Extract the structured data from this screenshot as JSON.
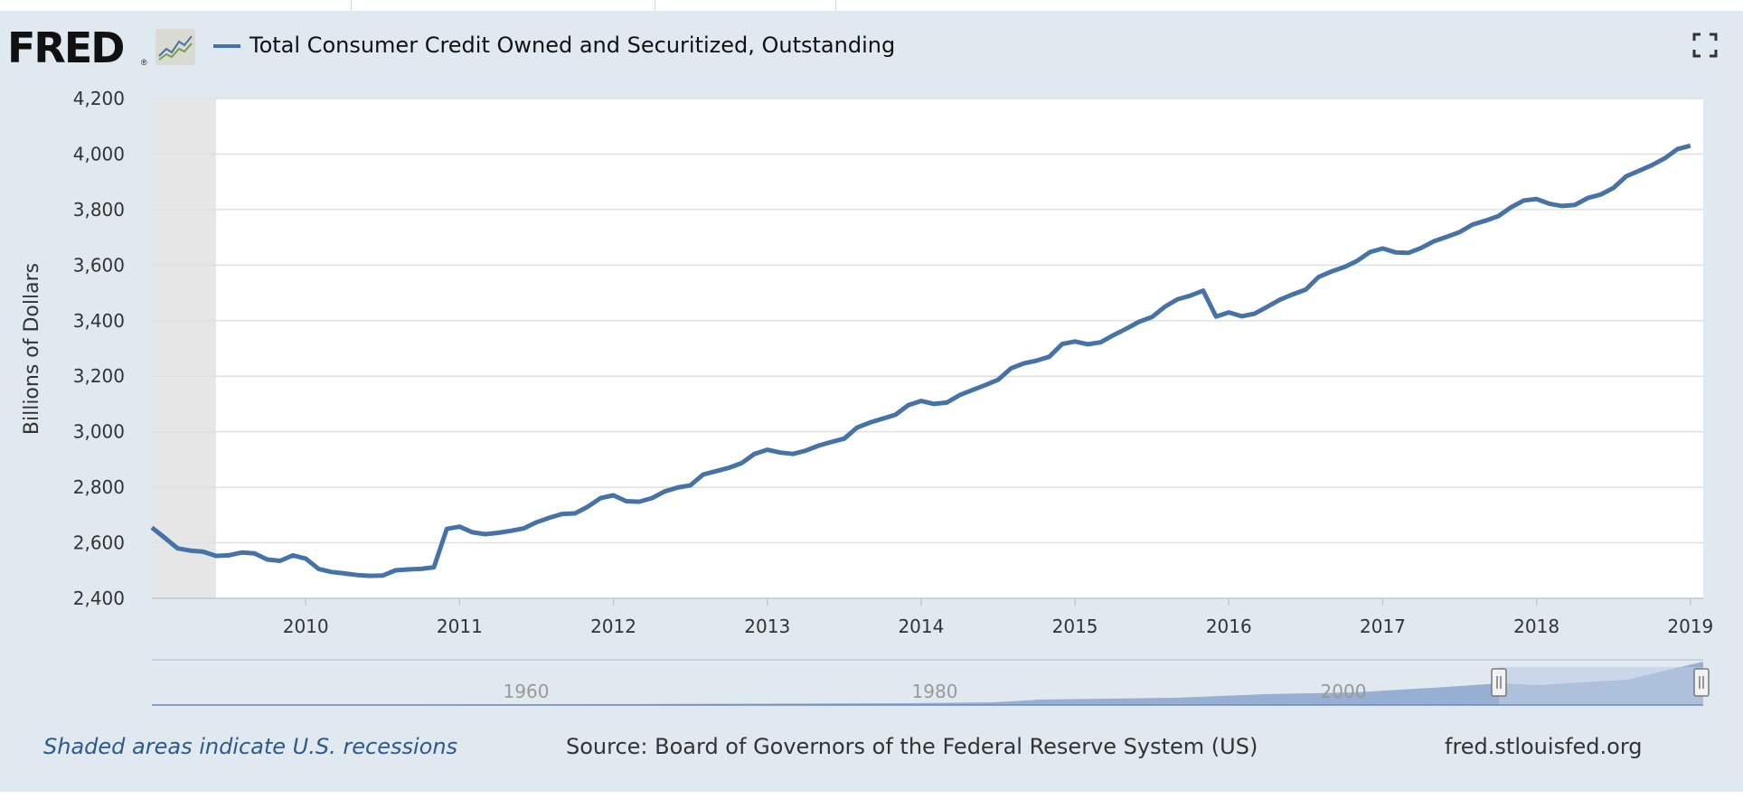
{
  "logo": {
    "text": "FRED",
    "registered": "®"
  },
  "legend": {
    "series_name": "Total Consumer Credit Owned and Securitized, Outstanding",
    "color": "#4572a7"
  },
  "toolbar": {
    "fullscreen_icon": "fullscreen-icon"
  },
  "footer": {
    "recession_note": "Shaded areas indicate U.S. recessions",
    "source": "Source: Board of Governors of the Federal Reserve System (US)",
    "url": "fred.stlouisfed.org"
  },
  "colors": {
    "series": "#4572a7",
    "recession": "#e6e6e6",
    "background": "#e1e9f0",
    "navigator_fill": "#8fa9cf",
    "navigator_selected": "#bccce3"
  },
  "chart_data": {
    "type": "line",
    "title": "",
    "xlabel": "",
    "ylabel": "Billions of Dollars",
    "xlim": [
      "2009-01",
      "2019-02"
    ],
    "ylim": [
      2400,
      4200
    ],
    "yticks": [
      2400,
      2600,
      2800,
      3000,
      3200,
      3400,
      3600,
      3800,
      4000,
      4200
    ],
    "ytick_labels": [
      "2,400",
      "2,600",
      "2,800",
      "3,000",
      "3,200",
      "3,400",
      "3,600",
      "3,800",
      "4,000",
      "4,200"
    ],
    "xticks": [
      "2010",
      "2011",
      "2012",
      "2013",
      "2014",
      "2015",
      "2016",
      "2017",
      "2018",
      "2019"
    ],
    "grid": true,
    "legend": "top-left",
    "recessions": [
      {
        "start": "2009-01",
        "end": "2009-06"
      }
    ],
    "series": [
      {
        "name": "Total Consumer Credit Owned and Securitized, Outstanding",
        "points": [
          [
            "2009-01",
            2655
          ],
          [
            "2009-02",
            2618
          ],
          [
            "2009-03",
            2580
          ],
          [
            "2009-04",
            2572
          ],
          [
            "2009-05",
            2568
          ],
          [
            "2009-06",
            2553
          ],
          [
            "2009-07",
            2555
          ],
          [
            "2009-08",
            2565
          ],
          [
            "2009-09",
            2562
          ],
          [
            "2009-10",
            2540
          ],
          [
            "2009-11",
            2535
          ],
          [
            "2009-12",
            2555
          ],
          [
            "2010-01",
            2543
          ],
          [
            "2010-02",
            2506
          ],
          [
            "2010-03",
            2495
          ],
          [
            "2010-04",
            2490
          ],
          [
            "2010-05",
            2484
          ],
          [
            "2010-06",
            2481
          ],
          [
            "2010-07",
            2482
          ],
          [
            "2010-08",
            2501
          ],
          [
            "2010-09",
            2504
          ],
          [
            "2010-10",
            2506
          ],
          [
            "2010-11",
            2512
          ],
          [
            "2010-12",
            2650
          ],
          [
            "2011-01",
            2658
          ],
          [
            "2011-02",
            2638
          ],
          [
            "2011-03",
            2631
          ],
          [
            "2011-04",
            2636
          ],
          [
            "2011-05",
            2643
          ],
          [
            "2011-06",
            2652
          ],
          [
            "2011-07",
            2674
          ],
          [
            "2011-08",
            2690
          ],
          [
            "2011-09",
            2704
          ],
          [
            "2011-10",
            2706
          ],
          [
            "2011-11",
            2730
          ],
          [
            "2011-12",
            2761
          ],
          [
            "2012-01",
            2771
          ],
          [
            "2012-02",
            2750
          ],
          [
            "2012-03",
            2748
          ],
          [
            "2012-04",
            2761
          ],
          [
            "2012-05",
            2785
          ],
          [
            "2012-06",
            2799
          ],
          [
            "2012-07",
            2807
          ],
          [
            "2012-08",
            2846
          ],
          [
            "2012-09",
            2858
          ],
          [
            "2012-10",
            2870
          ],
          [
            "2012-11",
            2887
          ],
          [
            "2012-12",
            2920
          ],
          [
            "2013-01",
            2935
          ],
          [
            "2013-02",
            2925
          ],
          [
            "2013-03",
            2920
          ],
          [
            "2013-04",
            2932
          ],
          [
            "2013-05",
            2950
          ],
          [
            "2013-06",
            2963
          ],
          [
            "2013-07",
            2975
          ],
          [
            "2013-08",
            3015
          ],
          [
            "2013-09",
            3033
          ],
          [
            "2013-10",
            3047
          ],
          [
            "2013-11",
            3061
          ],
          [
            "2013-12",
            3096
          ],
          [
            "2014-01",
            3111
          ],
          [
            "2014-02",
            3100
          ],
          [
            "2014-03",
            3105
          ],
          [
            "2014-04",
            3132
          ],
          [
            "2014-05",
            3150
          ],
          [
            "2014-06",
            3168
          ],
          [
            "2014-07",
            3187
          ],
          [
            "2014-08",
            3228
          ],
          [
            "2014-09",
            3246
          ],
          [
            "2014-10",
            3256
          ],
          [
            "2014-11",
            3270
          ],
          [
            "2014-12",
            3316
          ],
          [
            "2015-01",
            3325
          ],
          [
            "2015-02",
            3315
          ],
          [
            "2015-03",
            3322
          ],
          [
            "2015-04",
            3348
          ],
          [
            "2015-05",
            3371
          ],
          [
            "2015-06",
            3396
          ],
          [
            "2015-07",
            3413
          ],
          [
            "2015-08",
            3450
          ],
          [
            "2015-09",
            3477
          ],
          [
            "2015-10",
            3490
          ],
          [
            "2015-11",
            3508
          ],
          [
            "2015-12",
            3415
          ],
          [
            "2016-01",
            3430
          ],
          [
            "2016-02",
            3416
          ],
          [
            "2016-03",
            3425
          ],
          [
            "2016-04",
            3450
          ],
          [
            "2016-05",
            3476
          ],
          [
            "2016-06",
            3495
          ],
          [
            "2016-07",
            3512
          ],
          [
            "2016-08",
            3557
          ],
          [
            "2016-09",
            3577
          ],
          [
            "2016-10",
            3593
          ],
          [
            "2016-11",
            3615
          ],
          [
            "2016-12",
            3647
          ],
          [
            "2017-01",
            3660
          ],
          [
            "2017-02",
            3646
          ],
          [
            "2017-03",
            3644
          ],
          [
            "2017-04",
            3662
          ],
          [
            "2017-05",
            3686
          ],
          [
            "2017-06",
            3702
          ],
          [
            "2017-07",
            3719
          ],
          [
            "2017-08",
            3746
          ],
          [
            "2017-09",
            3760
          ],
          [
            "2017-10",
            3776
          ],
          [
            "2017-11",
            3808
          ],
          [
            "2017-12",
            3833
          ],
          [
            "2018-01",
            3838
          ],
          [
            "2018-02",
            3821
          ],
          [
            "2018-03",
            3813
          ],
          [
            "2018-04",
            3817
          ],
          [
            "2018-05",
            3842
          ],
          [
            "2018-06",
            3854
          ],
          [
            "2018-07",
            3878
          ],
          [
            "2018-08",
            3920
          ],
          [
            "2018-09",
            3940
          ],
          [
            "2018-10",
            3960
          ],
          [
            "2018-11",
            3985
          ],
          [
            "2018-12",
            4018
          ],
          [
            "2019-01",
            4030
          ]
        ]
      }
    ],
    "navigator": {
      "xticks": [
        "1960",
        "1980",
        "2000"
      ]
    }
  }
}
